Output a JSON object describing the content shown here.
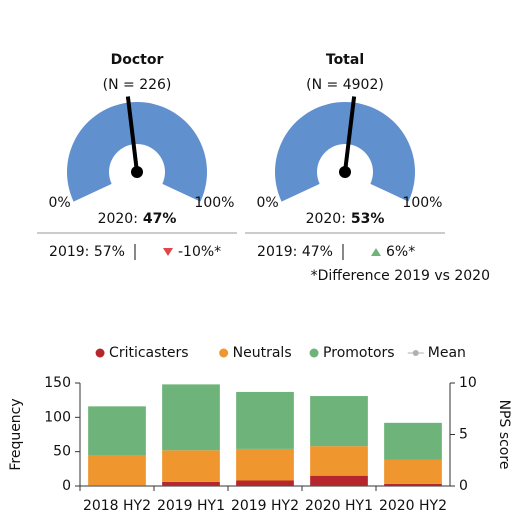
{
  "chart_data": [
    {
      "type": "gauge",
      "title": "Doctor",
      "subtitle": "(N = 226)",
      "value": 47,
      "value_label": "47%",
      "value_prefix": "2020:",
      "lim": [
        0,
        100
      ],
      "ticks": [
        {
          "value": 0,
          "label": "0%"
        },
        {
          "value": 100,
          "label": "100%"
        }
      ],
      "color": "#6190cf",
      "comparison": "2019: 57%",
      "change": "-10%*",
      "change_direction": "down",
      "change_color": "#e0474c"
    },
    {
      "type": "gauge",
      "title": "Total",
      "subtitle": "(N = 4902)",
      "value": 53,
      "value_label": "53%",
      "value_prefix": "2020:",
      "lim": [
        0,
        100
      ],
      "ticks": [
        {
          "value": 0,
          "label": "0%"
        },
        {
          "value": 100,
          "label": "100%"
        }
      ],
      "color": "#6190cf",
      "comparison": "2019: 47%",
      "change": "6%*",
      "change_direction": "up",
      "change_color": "#6db37a"
    },
    {
      "type": "stacked-bar",
      "categories": [
        "2018 HY2",
        "2019 HY1",
        "2019 HY2",
        "2020 HY1",
        "2020 HY2"
      ],
      "series": [
        {
          "name": "Criticasters",
          "color": "#b5272d",
          "values": [
            1,
            6,
            8,
            15,
            3
          ]
        },
        {
          "name": "Neutrals",
          "color": "#f0962e",
          "values": [
            43,
            46,
            46,
            43,
            35
          ]
        },
        {
          "name": "Promotors",
          "color": "#6db37a",
          "values": [
            72,
            96,
            83,
            73,
            54
          ]
        },
        {
          "name": "Mean",
          "color": "#b0b0b0",
          "axis": "y2",
          "values": [
            null,
            null,
            null,
            null,
            null
          ]
        }
      ],
      "ylabel": "Frequency",
      "y2label": "NPS score",
      "ylim": [
        0,
        150
      ],
      "yticks": [
        0,
        50,
        100,
        150
      ],
      "y2lim": [
        0,
        10
      ],
      "y2ticks": [
        0,
        5,
        10
      ]
    }
  ],
  "footnote": "*Difference 2019 vs 2020"
}
